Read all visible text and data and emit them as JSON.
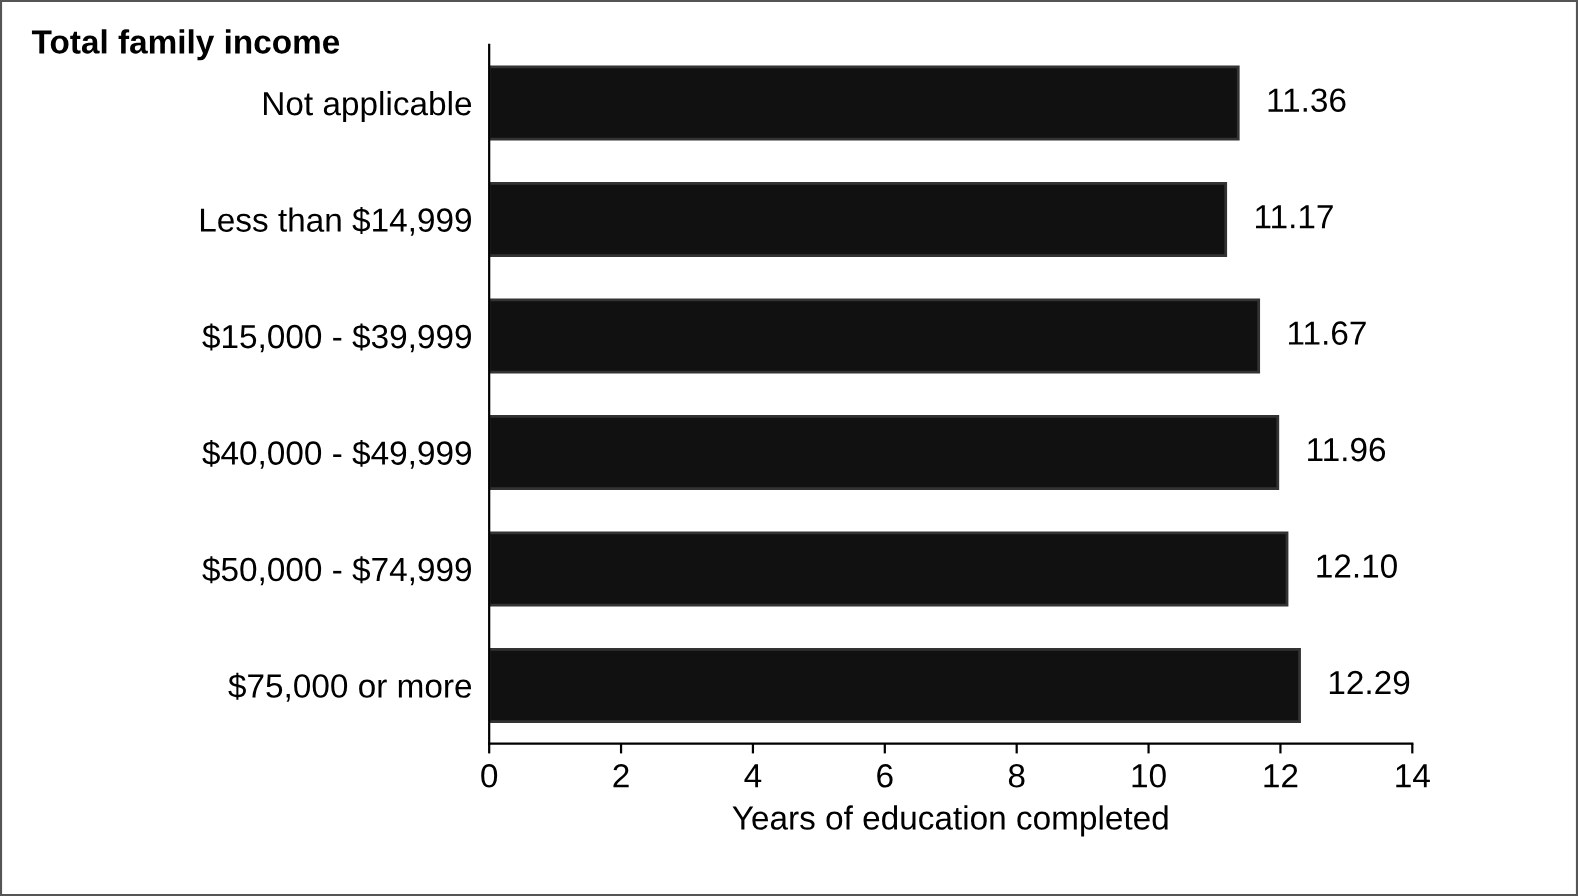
{
  "chart_data": {
    "type": "bar",
    "orientation": "horizontal",
    "title": "Total family income",
    "xlabel": "Years of education completed",
    "categories": [
      "Not applicable",
      "Less than $14,999",
      "$15,000 - $39,999",
      "$40,000 - $49,999",
      "$50,000 - $74,999",
      "$75,000 or more"
    ],
    "values": [
      11.36,
      11.17,
      11.67,
      11.96,
      12.1,
      12.29
    ],
    "value_labels": [
      "11.36",
      "11.17",
      "11.67",
      "11.96",
      "12.10",
      "12.29"
    ],
    "color": "#111111",
    "xlim": [
      0,
      14
    ],
    "xticks": [
      0,
      2,
      4,
      6,
      8,
      10,
      12,
      14
    ],
    "grid": false,
    "legend": false
  }
}
